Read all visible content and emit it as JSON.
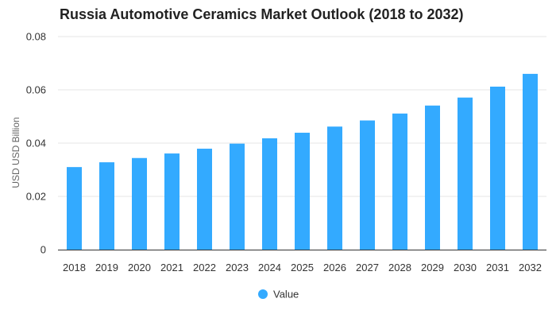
{
  "colors": {
    "bar": "#33aaff",
    "grid": "#e6e6e6",
    "axis": "#333333"
  },
  "chart_data": {
    "type": "bar",
    "title": "Russia Automotive Ceramics Market Outlook (2018 to 2032)",
    "xlabel": "",
    "ylabel": "USD USD Billion",
    "categories": [
      "2018",
      "2019",
      "2020",
      "2021",
      "2022",
      "2023",
      "2024",
      "2025",
      "2026",
      "2027",
      "2028",
      "2029",
      "2030",
      "2031",
      "2032"
    ],
    "series": [
      {
        "name": "Value",
        "values": [
          0.031,
          0.0328,
          0.0344,
          0.0361,
          0.0379,
          0.0398,
          0.0418,
          0.0439,
          0.0462,
          0.0485,
          0.0511,
          0.0541,
          0.0571,
          0.0612,
          0.066
        ]
      }
    ],
    "ylim": [
      0,
      0.08
    ],
    "yticks": [
      "0",
      "0.02",
      "0.04",
      "0.06",
      "0.08"
    ],
    "ytick_values": [
      0,
      0.02,
      0.04,
      0.06,
      0.08
    ],
    "grid": true,
    "legend_position": "bottom"
  }
}
